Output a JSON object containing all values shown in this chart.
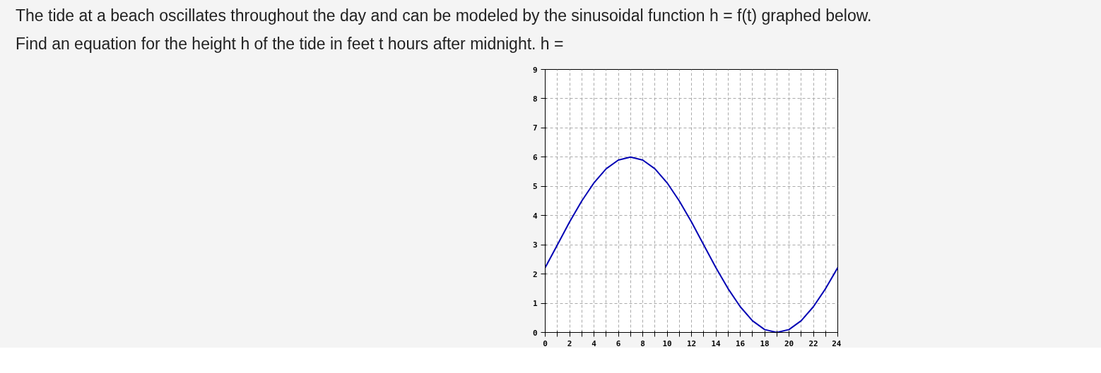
{
  "chart_data": {
    "type": "line",
    "title": "The tide at a beach oscillates throughout the day and can be modeled by the sinusoidal function h = f(t) graphed below.\nFind an equation for the height h of the tide in feet t hours after midnight. h =",
    "x": [
      0,
      1,
      2,
      3,
      4,
      5,
      6,
      7,
      8,
      9,
      10,
      11,
      12,
      13,
      14,
      15,
      16,
      17,
      18,
      19,
      20,
      21,
      22,
      23,
      24
    ],
    "series": [
      {
        "color": "#0000b4",
        "values": [
          2.22,
          3.0,
          3.78,
          4.5,
          5.12,
          5.6,
          5.9,
          6.0,
          5.9,
          5.6,
          5.12,
          4.5,
          3.78,
          3.0,
          2.22,
          1.5,
          0.88,
          0.4,
          0.1,
          0.0,
          0.1,
          0.4,
          0.88,
          1.5,
          2.22
        ]
      }
    ],
    "xlim": [
      0,
      24
    ],
    "ylim": [
      0,
      9
    ],
    "xticks": [
      0,
      {
        "value": 1,
        "label": null
      },
      2,
      {
        "value": 3,
        "label": null
      },
      4,
      {
        "value": 5,
        "label": null
      },
      6,
      {
        "value": 7,
        "label": null
      },
      8,
      {
        "value": 9,
        "label": null
      },
      10,
      {
        "value": 11,
        "label": null
      },
      12,
      {
        "value": 13,
        "label": null
      },
      14,
      {
        "value": 15,
        "label": null
      },
      16,
      {
        "value": 17,
        "label": null
      },
      18,
      {
        "value": 19,
        "label": null
      },
      20,
      {
        "value": 21,
        "label": null
      },
      22,
      {
        "value": 23,
        "label": null
      },
      24
    ],
    "yticks": [
      0,
      1,
      2,
      3,
      4,
      5,
      6,
      7,
      8,
      9
    ],
    "grid": true,
    "marker": "none",
    "line_style": "solid"
  }
}
